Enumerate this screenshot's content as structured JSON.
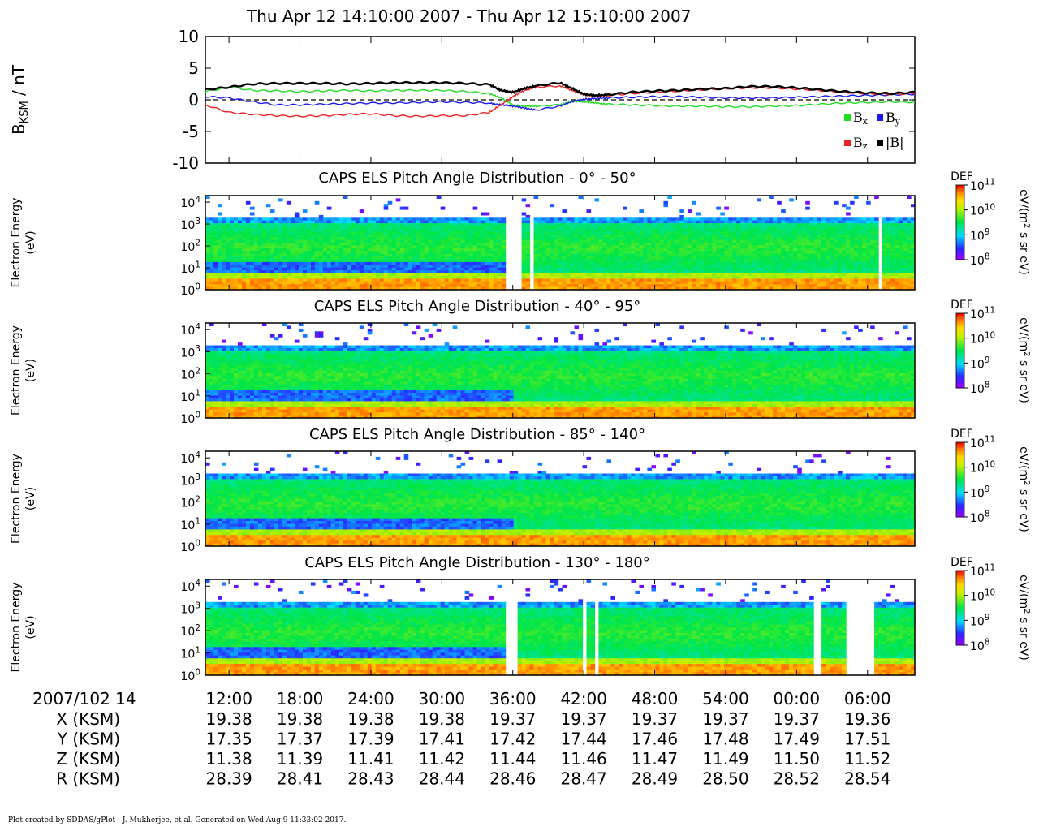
{
  "title": "Thu Apr 12 14:10:00 2007 - Thu Apr 12 15:10:00 2007",
  "footer": "Plot created by SDDAS/gPlot - J. Mukherjee, et al.  Generated on Wed Aug 9 11:33:02 2017.",
  "colors": {
    "bx": "#22dd22",
    "by": "#1a1aee",
    "bz": "#ee2222",
    "bmag": "#000000"
  },
  "chart_data": [
    {
      "type": "line",
      "ylabel": "B",
      "ylabel_sub": "KSM",
      "ylabel_unit": " / nT",
      "ylim": [
        -10,
        10
      ],
      "yticks": [
        "10",
        "5",
        "0",
        "-5",
        "-10"
      ],
      "zero_line": "dashed",
      "legend": [
        {
          "name": "B",
          "sub": "x",
          "color": "#22dd22"
        },
        {
          "name": "B",
          "sub": "y",
          "color": "#1a1aee"
        },
        {
          "name": "B",
          "sub": "z",
          "color": "#ee2222"
        },
        {
          "name": "|B|",
          "sub": "",
          "color": "#000000"
        }
      ],
      "legend_placement": "bottom-right",
      "x_minutes": [
        10,
        12,
        14,
        16,
        18,
        20,
        22,
        24,
        26,
        28,
        30,
        32,
        34,
        35,
        36,
        37,
        38,
        40,
        41,
        42,
        43,
        44,
        46,
        48,
        50,
        52,
        54,
        56,
        58,
        60,
        62,
        64,
        66,
        68,
        70
      ],
      "series": [
        {
          "name": "B_x",
          "color": "#22dd22",
          "values": [
            1.3,
            2.0,
            1.5,
            1.4,
            1.3,
            1.4,
            1.5,
            1.4,
            1.5,
            1.5,
            1.5,
            1.3,
            1.0,
            0.3,
            -0.8,
            -1.0,
            -1.0,
            -0.8,
            -0.2,
            -0.3,
            -0.5,
            -0.7,
            -0.8,
            -0.9,
            -1.0,
            -1.0,
            -1.1,
            -1.1,
            -1.0,
            -0.9,
            -0.7,
            -0.5,
            -0.4,
            -0.3,
            -0.4
          ]
        },
        {
          "name": "B_y",
          "color": "#1a1aee",
          "values": [
            0.5,
            0.3,
            -0.3,
            -0.8,
            -0.8,
            -0.7,
            -0.6,
            -0.5,
            -0.5,
            -0.4,
            -0.3,
            -0.4,
            -0.5,
            -0.8,
            -1.0,
            -1.3,
            -1.6,
            -1.0,
            -0.3,
            0.1,
            0.2,
            0.3,
            0.4,
            0.5,
            0.5,
            0.4,
            0.3,
            0.3,
            0.3,
            0.4,
            0.5,
            0.6,
            0.7,
            0.8,
            0.9
          ]
        },
        {
          "name": "B_z",
          "color": "#ee2222",
          "values": [
            -0.8,
            -2.0,
            -2.3,
            -2.5,
            -2.6,
            -2.5,
            -2.3,
            -2.2,
            -2.5,
            -2.6,
            -2.5,
            -2.5,
            -2.0,
            -0.8,
            0.5,
            1.5,
            2.0,
            2.2,
            1.5,
            0.8,
            0.6,
            0.7,
            1.0,
            1.2,
            1.4,
            1.6,
            1.8,
            1.9,
            1.9,
            1.7,
            1.5,
            1.2,
            1.0,
            0.9,
            1.0
          ]
        },
        {
          "name": "|B|",
          "color": "#000000",
          "values": [
            1.6,
            2.0,
            2.5,
            2.6,
            2.6,
            2.6,
            2.5,
            2.6,
            2.7,
            2.7,
            2.7,
            2.6,
            2.4,
            1.5,
            1.2,
            1.8,
            2.2,
            2.7,
            1.8,
            0.9,
            0.7,
            0.8,
            1.2,
            1.4,
            1.5,
            1.7,
            1.8,
            2.1,
            2.1,
            1.9,
            1.6,
            1.3,
            1.1,
            1.0,
            1.2
          ]
        }
      ]
    },
    {
      "type": "heatmap",
      "title": "CAPS ELS Pitch Angle Distribution - 0° - 50°",
      "ylabel": [
        "Electron Energy",
        "(eV)"
      ],
      "gaps_min": [
        [
          35.4,
          36.7
        ],
        [
          37.4,
          37.8
        ],
        [
          38.3,
          38.6
        ],
        [
          67.0,
          67.4
        ]
      ]
    },
    {
      "type": "heatmap",
      "title": "CAPS ELS Pitch Angle Distribution - 40° - 95°",
      "ylabel": [
        "Electron Energy",
        "(eV)"
      ],
      "gaps_min": []
    },
    {
      "type": "heatmap",
      "title": "CAPS ELS Pitch Angle Distribution - 85° - 140°",
      "ylabel": [
        "Electron Energy",
        "(eV)"
      ],
      "gaps_min": []
    },
    {
      "type": "heatmap",
      "title": "CAPS ELS Pitch Angle Distribution - 130° - 180°",
      "ylabel": [
        "Electron Energy",
        "(eV)"
      ],
      "gaps_min": [
        [
          35.5,
          36.5
        ],
        [
          42.0,
          42.4
        ],
        [
          43.0,
          43.3
        ],
        [
          61.5,
          62.2
        ],
        [
          64.3,
          66.5
        ]
      ]
    }
  ],
  "spectrogram_axis": {
    "yticks": [
      {
        "base": "10",
        "exp": "4"
      },
      {
        "base": "10",
        "exp": "3"
      },
      {
        "base": "10",
        "exp": "2"
      },
      {
        "base": "10",
        "exp": "1"
      },
      {
        "base": "10",
        "exp": "0"
      }
    ],
    "colorbar_label": "DEF",
    "colorbar_unit": "eV/(m",
    "colorbar_unit_sup": "2",
    "colorbar_unit_tail": " s sr eV)",
    "colorbar_range": [
      8,
      11
    ],
    "colorbar_ticks": [
      {
        "base": "10",
        "exp": "11"
      },
      {
        "base": "10",
        "exp": "10"
      },
      {
        "base": "10",
        "exp": "9"
      },
      {
        "base": "10",
        "exp": "8"
      }
    ]
  },
  "time_axis": {
    "label": "2007/102 14",
    "ticks": [
      "12:00",
      "18:00",
      "24:00",
      "30:00",
      "36:00",
      "42:00",
      "48:00",
      "54:00",
      "00:00",
      "06:00"
    ],
    "tick_minutes": [
      12,
      18,
      24,
      30,
      36,
      42,
      48,
      54,
      60,
      66
    ],
    "xlim_minutes": [
      10,
      70
    ]
  },
  "ephemeris": [
    {
      "label": "X (KSM)",
      "values": [
        "19.38",
        "19.38",
        "19.38",
        "19.38",
        "19.37",
        "19.37",
        "19.37",
        "19.37",
        "19.37",
        "19.36"
      ]
    },
    {
      "label": "Y (KSM)",
      "values": [
        "17.35",
        "17.37",
        "17.39",
        "17.41",
        "17.42",
        "17.44",
        "17.46",
        "17.48",
        "17.49",
        "17.51"
      ]
    },
    {
      "label": "Z (KSM)",
      "values": [
        "11.38",
        "11.39",
        "11.41",
        "11.42",
        "11.44",
        "11.46",
        "11.47",
        "11.49",
        "11.50",
        "11.52"
      ]
    },
    {
      "label": "R (KSM)",
      "values": [
        "28.39",
        "28.41",
        "28.43",
        "28.44",
        "28.46",
        "28.47",
        "28.49",
        "28.50",
        "28.52",
        "28.54"
      ]
    }
  ]
}
